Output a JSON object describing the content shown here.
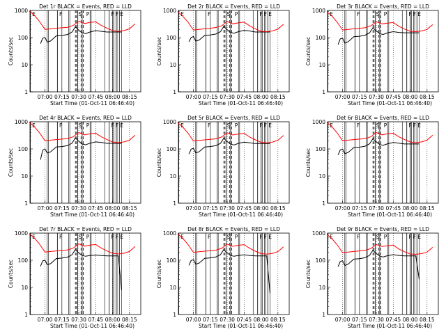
{
  "figure": {
    "xlabel": "Start Time (01-Oct-11 06:46:40)",
    "ylabel": "Counts/sec",
    "x_ticks": [
      "07:00",
      "07:15",
      "07:30",
      "07:45",
      "08:00",
      "08:15"
    ],
    "y_ticks": [
      "1",
      "10",
      "100",
      "1000"
    ],
    "flag_labels": [
      "E",
      "F",
      "S",
      "P",
      "F",
      "F",
      "E"
    ],
    "colors": {
      "events": "#000000",
      "lld": "#ff0000",
      "background": "#ffffff"
    }
  },
  "chart_data": [
    {
      "type": "line",
      "title": "Det 1r BLACK = Events, RED = LLD",
      "xlim": [
        "06:46:40",
        "08:25"
      ],
      "ylim": [
        1,
        1000
      ],
      "y_scale": "log",
      "series": [
        {
          "name": "Events",
          "x": [
            "06:56",
            "06:58",
            "07:00",
            "07:02",
            "07:05",
            "07:10",
            "07:15",
            "07:20",
            "07:24",
            "07:27",
            "07:29",
            "07:33",
            "07:36",
            "07:40",
            "07:45",
            "07:50",
            "07:55",
            "08:00",
            "08:05",
            "08:08"
          ],
          "values": [
            60,
            95,
            100,
            68,
            75,
            115,
            120,
            130,
            160,
            250,
            200,
            150,
            140,
            160,
            180,
            170,
            160,
            160,
            160,
            160
          ]
        },
        {
          "name": "LLD",
          "x": [
            "06:46",
            "06:50",
            "06:55",
            "07:00",
            "07:05",
            "07:10",
            "07:15",
            "07:20",
            "07:25",
            "07:30",
            "07:35",
            "07:40",
            "07:45",
            "07:50",
            "07:55",
            "08:00",
            "08:05",
            "08:10",
            "08:15",
            "08:20"
          ],
          "values": [
            950,
            700,
            400,
            200,
            210,
            220,
            230,
            240,
            280,
            400,
            330,
            360,
            380,
            280,
            220,
            180,
            170,
            180,
            210,
            320
          ]
        }
      ]
    },
    {
      "type": "line",
      "title": "Det 2r BLACK = Events, RED = LLD",
      "xlim": [
        "06:46:40",
        "08:25"
      ],
      "ylim": [
        1,
        1000
      ],
      "y_scale": "log",
      "series": [
        {
          "name": "Events",
          "x": [
            "06:56",
            "06:58",
            "07:00",
            "07:02",
            "07:05",
            "07:10",
            "07:15",
            "07:20",
            "07:24",
            "07:27",
            "07:29",
            "07:33",
            "07:36",
            "07:40",
            "07:45",
            "07:50",
            "07:55",
            "08:00",
            "08:05",
            "08:08"
          ],
          "values": [
            70,
            100,
            110,
            75,
            80,
            120,
            125,
            135,
            165,
            260,
            210,
            155,
            145,
            165,
            185,
            175,
            160,
            160,
            160,
            160
          ]
        },
        {
          "name": "LLD",
          "x": [
            "06:46",
            "06:50",
            "06:55",
            "07:00",
            "07:05",
            "07:10",
            "07:15",
            "07:20",
            "07:25",
            "07:30",
            "07:35",
            "07:40",
            "07:45",
            "07:50",
            "07:55",
            "08:00",
            "08:05",
            "08:10",
            "08:15",
            "08:20"
          ],
          "values": [
            900,
            650,
            380,
            190,
            200,
            210,
            220,
            235,
            270,
            390,
            320,
            350,
            370,
            270,
            210,
            170,
            165,
            175,
            205,
            310
          ]
        }
      ]
    },
    {
      "type": "line",
      "title": "Det 3r BLACK = Events, RED = LLD",
      "xlim": [
        "06:46:40",
        "08:25"
      ],
      "ylim": [
        1,
        1000
      ],
      "y_scale": "log",
      "series": [
        {
          "name": "Events",
          "x": [
            "06:56",
            "06:58",
            "07:00",
            "07:02",
            "07:05",
            "07:10",
            "07:15",
            "07:20",
            "07:24",
            "07:27",
            "07:29",
            "07:33",
            "07:36",
            "07:40",
            "07:45",
            "07:50",
            "07:55",
            "08:00",
            "08:05",
            "08:08"
          ],
          "values": [
            55,
            90,
            95,
            62,
            70,
            108,
            112,
            122,
            150,
            230,
            190,
            140,
            130,
            150,
            165,
            155,
            150,
            150,
            150,
            150
          ]
        },
        {
          "name": "LLD",
          "x": [
            "06:46",
            "06:50",
            "06:55",
            "07:00",
            "07:05",
            "07:10",
            "07:15",
            "07:20",
            "07:25",
            "07:30",
            "07:35",
            "07:40",
            "07:45",
            "07:50",
            "07:55",
            "08:00",
            "08:05",
            "08:10",
            "08:15",
            "08:20"
          ],
          "values": [
            900,
            660,
            380,
            190,
            200,
            210,
            220,
            230,
            270,
            380,
            320,
            340,
            360,
            260,
            205,
            170,
            165,
            175,
            200,
            300
          ]
        }
      ]
    },
    {
      "type": "line",
      "title": "Det 4r BLACK = Events, RED = LLD",
      "xlim": [
        "06:46:40",
        "08:25"
      ],
      "ylim": [
        1,
        1000
      ],
      "y_scale": "log",
      "series": [
        {
          "name": "Events",
          "x": [
            "06:56",
            "06:58",
            "07:00",
            "07:02",
            "07:05",
            "07:10",
            "07:15",
            "07:20",
            "07:24",
            "07:27",
            "07:29",
            "07:33",
            "07:36",
            "07:40",
            "07:45",
            "07:50",
            "07:55",
            "08:00",
            "08:05",
            "08:08"
          ],
          "values": [
            40,
            90,
            100,
            70,
            78,
            118,
            122,
            132,
            162,
            255,
            205,
            152,
            142,
            162,
            182,
            172,
            160,
            160,
            160,
            160
          ]
        },
        {
          "name": "LLD",
          "x": [
            "06:46",
            "06:50",
            "06:55",
            "07:00",
            "07:05",
            "07:10",
            "07:15",
            "07:20",
            "07:25",
            "07:30",
            "07:35",
            "07:40",
            "07:45",
            "07:50",
            "07:55",
            "08:00",
            "08:05",
            "08:10",
            "08:15",
            "08:20"
          ],
          "values": [
            950,
            700,
            400,
            200,
            210,
            220,
            230,
            240,
            280,
            400,
            330,
            360,
            380,
            280,
            220,
            180,
            170,
            180,
            210,
            320
          ]
        }
      ]
    },
    {
      "type": "line",
      "title": "Det 5r BLACK = Events, RED = LLD",
      "xlim": [
        "06:46:40",
        "08:25"
      ],
      "ylim": [
        1,
        1000
      ],
      "y_scale": "log",
      "series": [
        {
          "name": "Events",
          "x": [
            "06:56",
            "06:58",
            "07:00",
            "07:02",
            "07:05",
            "07:10",
            "07:15",
            "07:20",
            "07:24",
            "07:27",
            "07:29",
            "07:33",
            "07:36",
            "07:40",
            "07:45",
            "07:50",
            "07:55",
            "08:00",
            "08:05",
            "08:08"
          ],
          "values": [
            65,
            98,
            105,
            72,
            78,
            118,
            122,
            132,
            160,
            250,
            200,
            150,
            140,
            160,
            178,
            168,
            158,
            158,
            158,
            158
          ]
        },
        {
          "name": "LLD",
          "x": [
            "06:46",
            "06:50",
            "06:55",
            "07:00",
            "07:05",
            "07:10",
            "07:15",
            "07:20",
            "07:25",
            "07:30",
            "07:35",
            "07:40",
            "07:45",
            "07:50",
            "07:55",
            "08:00",
            "08:05",
            "08:10",
            "08:15",
            "08:20"
          ],
          "values": [
            920,
            680,
            390,
            195,
            205,
            215,
            225,
            235,
            275,
            390,
            325,
            355,
            375,
            275,
            215,
            175,
            168,
            178,
            208,
            315
          ]
        }
      ]
    },
    {
      "type": "line",
      "title": "Det 6r BLACK = Events, RED = LLD",
      "xlim": [
        "06:46:40",
        "08:25"
      ],
      "ylim": [
        1,
        1000
      ],
      "y_scale": "log",
      "series": [
        {
          "name": "Events",
          "x": [
            "06:56",
            "06:58",
            "07:00",
            "07:02",
            "07:05",
            "07:10",
            "07:15",
            "07:20",
            "07:24",
            "07:27",
            "07:29",
            "07:33",
            "07:36",
            "07:40",
            "07:45",
            "07:50",
            "07:55",
            "08:00",
            "08:05",
            "08:08"
          ],
          "values": [
            60,
            92,
            98,
            66,
            74,
            112,
            116,
            126,
            155,
            240,
            195,
            145,
            135,
            155,
            172,
            162,
            152,
            152,
            152,
            152
          ]
        },
        {
          "name": "LLD",
          "x": [
            "06:46",
            "06:50",
            "06:55",
            "07:00",
            "07:05",
            "07:10",
            "07:15",
            "07:20",
            "07:25",
            "07:30",
            "07:35",
            "07:40",
            "07:45",
            "07:50",
            "07:55",
            "08:00",
            "08:05",
            "08:10",
            "08:15",
            "08:20"
          ],
          "values": [
            950,
            700,
            400,
            200,
            210,
            220,
            230,
            240,
            280,
            400,
            330,
            360,
            380,
            280,
            220,
            180,
            170,
            180,
            210,
            320
          ]
        }
      ]
    },
    {
      "type": "line",
      "title": "Det 7r BLACK = Events, RED = LLD",
      "xlim": [
        "06:46:40",
        "08:25"
      ],
      "ylim": [
        1,
        1000
      ],
      "y_scale": "log",
      "series": [
        {
          "name": "Events",
          "x": [
            "06:56",
            "06:58",
            "07:00",
            "07:02",
            "07:05",
            "07:10",
            "07:15",
            "07:20",
            "07:24",
            "07:27",
            "07:29",
            "07:33",
            "07:36",
            "07:40",
            "07:45",
            "07:50",
            "07:55",
            "08:00",
            "08:05",
            "08:08"
          ],
          "values": [
            60,
            95,
            100,
            68,
            75,
            115,
            120,
            130,
            160,
            250,
            200,
            150,
            140,
            150,
            155,
            150,
            145,
            145,
            145,
            8
          ]
        },
        {
          "name": "LLD",
          "x": [
            "06:46",
            "06:50",
            "06:55",
            "07:00",
            "07:05",
            "07:10",
            "07:15",
            "07:20",
            "07:25",
            "07:30",
            "07:35",
            "07:40",
            "07:45",
            "07:50",
            "07:55",
            "08:00",
            "08:05",
            "08:10",
            "08:15",
            "08:20"
          ],
          "values": [
            950,
            700,
            400,
            200,
            210,
            220,
            230,
            240,
            280,
            400,
            330,
            360,
            380,
            280,
            220,
            180,
            170,
            180,
            210,
            320
          ]
        }
      ]
    },
    {
      "type": "line",
      "title": "Det 8r BLACK = Events, RED = LLD",
      "xlim": [
        "06:46:40",
        "08:25"
      ],
      "ylim": [
        1,
        1000
      ],
      "y_scale": "log",
      "series": [
        {
          "name": "Events",
          "x": [
            "06:56",
            "06:58",
            "07:00",
            "07:02",
            "07:05",
            "07:10",
            "07:15",
            "07:20",
            "07:24",
            "07:27",
            "07:29",
            "07:33",
            "07:36",
            "07:40",
            "07:45",
            "07:50",
            "07:55",
            "08:00",
            "08:05",
            "08:08"
          ],
          "values": [
            65,
            98,
            105,
            72,
            78,
            118,
            122,
            132,
            160,
            250,
            200,
            150,
            140,
            150,
            158,
            150,
            145,
            145,
            145,
            6
          ]
        },
        {
          "name": "LLD",
          "x": [
            "06:46",
            "06:50",
            "06:55",
            "07:00",
            "07:05",
            "07:10",
            "07:15",
            "07:20",
            "07:25",
            "07:30",
            "07:35",
            "07:40",
            "07:45",
            "07:50",
            "07:55",
            "08:00",
            "08:05",
            "08:10",
            "08:15",
            "08:20"
          ],
          "values": [
            920,
            680,
            390,
            195,
            205,
            215,
            225,
            235,
            275,
            390,
            325,
            355,
            375,
            275,
            215,
            175,
            168,
            178,
            208,
            315
          ]
        }
      ]
    },
    {
      "type": "line",
      "title": "Det 9r BLACK = Events, RED = LLD",
      "xlim": [
        "06:46:40",
        "08:25"
      ],
      "ylim": [
        1,
        1000
      ],
      "y_scale": "log",
      "series": [
        {
          "name": "Events",
          "x": [
            "06:56",
            "06:58",
            "07:00",
            "07:02",
            "07:05",
            "07:10",
            "07:15",
            "07:20",
            "07:24",
            "07:27",
            "07:29",
            "07:33",
            "07:36",
            "07:40",
            "07:45",
            "07:50",
            "07:55",
            "08:00",
            "08:05",
            "08:08"
          ],
          "values": [
            58,
            90,
            96,
            64,
            72,
            110,
            114,
            124,
            152,
            235,
            190,
            142,
            132,
            148,
            160,
            150,
            145,
            145,
            145,
            20
          ]
        },
        {
          "name": "LLD",
          "x": [
            "06:46",
            "06:50",
            "06:55",
            "07:00",
            "07:05",
            "07:10",
            "07:15",
            "07:20",
            "07:25",
            "07:30",
            "07:35",
            "07:40",
            "07:45",
            "07:50",
            "07:55",
            "08:00",
            "08:05",
            "08:10",
            "08:15",
            "08:20"
          ],
          "values": [
            900,
            660,
            380,
            190,
            200,
            210,
            220,
            230,
            270,
            380,
            320,
            340,
            360,
            260,
            205,
            170,
            165,
            175,
            200,
            300
          ]
        }
      ]
    }
  ]
}
